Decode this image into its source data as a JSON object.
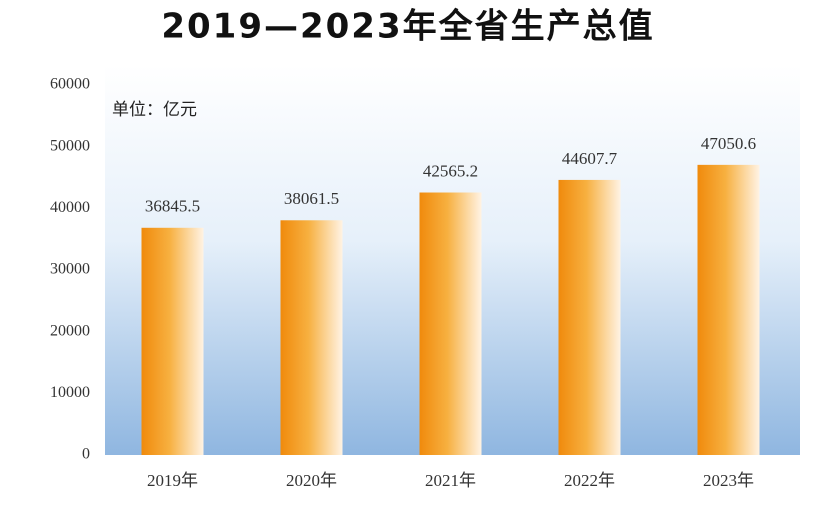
{
  "chart_data": {
    "type": "bar",
    "title": "2019—2023年全省生产总值",
    "unit": "单位：亿元",
    "categories": [
      "2019年",
      "2020年",
      "2021年",
      "2022年",
      "2023年"
    ],
    "values": [
      36845.5,
      38061.5,
      42565.2,
      44607.7,
      47050.6
    ],
    "color": "#f39a1e",
    "ylim": [
      0,
      60000
    ],
    "yticks": [
      0,
      10000,
      20000,
      30000,
      40000,
      50000,
      60000
    ],
    "grid": false
  }
}
